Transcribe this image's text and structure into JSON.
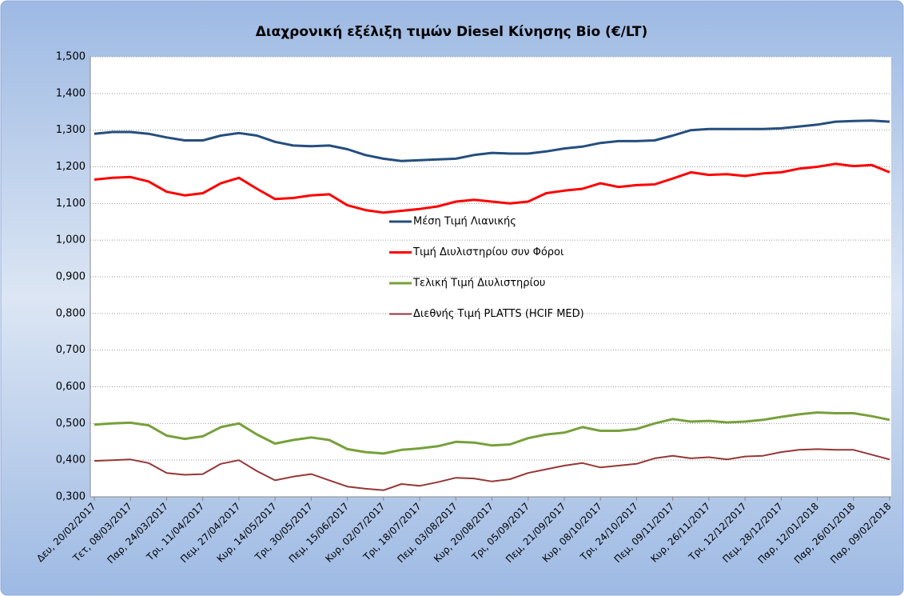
{
  "chart_data": {
    "type": "line",
    "title": "Διαχρονική εξέλιξη τιμών Diesel Κίνησης Bio (€/LT)",
    "categories": [
      "Δευ, 20/02/2017",
      null,
      "Τετ, 08/03/2017",
      null,
      "Παρ, 24/03/2017",
      null,
      "Τρι, 11/04/2017",
      null,
      "Πεμ, 27/04/2017",
      null,
      "Κυρ, 14/05/2017",
      null,
      "Τρι, 30/05/2017",
      null,
      "Πεμ, 15/06/2017",
      null,
      "Κυρ, 02/07/2017",
      null,
      "Τρι, 18/07/2017",
      null,
      "Πεμ, 03/08/2017",
      null,
      "Κυρ, 20/08/2017",
      null,
      "Τρι, 05/09/2017",
      null,
      "Πεμ, 21/09/2017",
      null,
      "Κυρ, 08/10/2017",
      null,
      "Τρι, 24/10/2017",
      null,
      "Πεμ, 09/11/2017",
      null,
      "Κυρ, 26/11/2017",
      null,
      "Τρι, 12/12/2017",
      null,
      "Πεμ, 28/12/2017",
      null,
      "Παρ, 12/01/2018",
      null,
      "Παρ, 26/01/2018",
      null,
      "Παρ, 09/02/2018"
    ],
    "series": [
      {
        "name": "Μέση Τιμή Λιανικής",
        "color": "#254e7e",
        "values": [
          1.29,
          1.295,
          1.295,
          1.29,
          1.28,
          1.272,
          1.272,
          1.285,
          1.292,
          1.285,
          1.268,
          1.258,
          1.256,
          1.258,
          1.248,
          1.232,
          1.222,
          1.216,
          1.218,
          1.22,
          1.222,
          1.232,
          1.238,
          1.236,
          1.236,
          1.242,
          1.25,
          1.255,
          1.265,
          1.27,
          1.27,
          1.272,
          1.285,
          1.3,
          1.303,
          1.303,
          1.303,
          1.303,
          1.305,
          1.31,
          1.315,
          1.323,
          1.325,
          1.326,
          1.323
        ]
      },
      {
        "name": "Τιμή Διυλιστηρίου συν Φόροι",
        "color": "#ff0000",
        "values": [
          1.165,
          1.17,
          1.172,
          1.16,
          1.132,
          1.122,
          1.128,
          1.155,
          1.17,
          1.14,
          1.112,
          1.115,
          1.122,
          1.125,
          1.095,
          1.082,
          1.075,
          1.08,
          1.085,
          1.092,
          1.105,
          1.11,
          1.105,
          1.1,
          1.105,
          1.128,
          1.135,
          1.14,
          1.155,
          1.145,
          1.15,
          1.152,
          1.168,
          1.185,
          1.178,
          1.18,
          1.175,
          1.182,
          1.185,
          1.195,
          1.2,
          1.208,
          1.202,
          1.205,
          1.185
        ]
      },
      {
        "name": "Τελική Τιμή Διυλιστηρίου",
        "color": "#77a03b",
        "values": [
          0.497,
          0.5,
          0.502,
          0.495,
          0.467,
          0.458,
          0.465,
          0.49,
          0.5,
          0.47,
          0.445,
          0.455,
          0.462,
          0.455,
          0.43,
          0.422,
          0.418,
          0.428,
          0.432,
          0.438,
          0.45,
          0.448,
          0.44,
          0.443,
          0.46,
          0.47,
          0.475,
          0.49,
          0.48,
          0.48,
          0.485,
          0.5,
          0.512,
          0.505,
          0.507,
          0.503,
          0.505,
          0.51,
          0.518,
          0.525,
          0.53,
          0.528,
          0.528,
          0.52,
          0.51
        ]
      },
      {
        "name": "Διεθνής Τιμή PLATTS (HCIF MED)",
        "color": "#953735",
        "values": [
          0.398,
          0.4,
          0.402,
          0.392,
          0.365,
          0.36,
          0.362,
          0.39,
          0.4,
          0.37,
          0.345,
          0.355,
          0.362,
          0.345,
          0.328,
          0.322,
          0.318,
          0.335,
          0.33,
          0.34,
          0.352,
          0.35,
          0.342,
          0.348,
          0.365,
          0.375,
          0.385,
          0.392,
          0.38,
          0.385,
          0.39,
          0.405,
          0.412,
          0.405,
          0.408,
          0.402,
          0.41,
          0.412,
          0.422,
          0.428,
          0.43,
          0.428,
          0.428,
          0.415,
          0.402
        ]
      }
    ],
    "ylim": [
      0.3,
      1.5
    ],
    "yticks": [
      {
        "value": 0.3,
        "label": "0,300"
      },
      {
        "value": 0.4,
        "label": "0,400"
      },
      {
        "value": 0.5,
        "label": "0,500"
      },
      {
        "value": 0.6,
        "label": "0,600"
      },
      {
        "value": 0.7,
        "label": "0,700"
      },
      {
        "value": 0.8,
        "label": "0,800"
      },
      {
        "value": 0.9,
        "label": "0,900"
      },
      {
        "value": 1.0,
        "label": "1,000"
      },
      {
        "value": 1.1,
        "label": "1,100"
      },
      {
        "value": 1.2,
        "label": "1,200"
      },
      {
        "value": 1.3,
        "label": "1,300"
      },
      {
        "value": 1.4,
        "label": "1,400"
      },
      {
        "value": 1.5,
        "label": "1,500"
      }
    ],
    "grid": true,
    "legend": "center"
  }
}
